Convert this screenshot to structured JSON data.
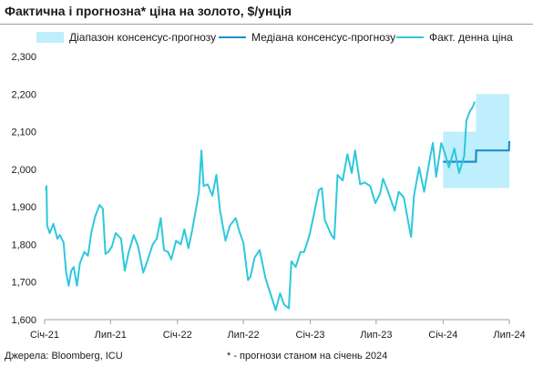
{
  "title": "Фактична і прогнозна* ціна на золото, $/унція",
  "footer": {
    "source": "Джерела: Bloomberg, ICU",
    "note": "* - прогнози станом на січень 2024"
  },
  "colors": {
    "band": "#bfeefc",
    "median": "#1f8fc7",
    "actual": "#2ec8dc",
    "axis": "#9aa0a6",
    "text": "#1a1a1a"
  },
  "chart_data": {
    "type": "line",
    "title": "Фактична і прогнозна* ціна на золото, $/унція",
    "xlabel": "",
    "ylabel": "",
    "ylim": [
      1600,
      2300
    ],
    "yticks": [
      1600,
      1700,
      1800,
      1900,
      2000,
      2100,
      2200,
      2300
    ],
    "ytick_labels": [
      "1,600",
      "1,700",
      "1,800",
      "1,900",
      "2,000",
      "2,100",
      "2,200",
      "2,300"
    ],
    "xlim": [
      "2021-01-01",
      "2024-07-01"
    ],
    "xticks": [
      "2021-01-01",
      "2021-07-01",
      "2022-01-01",
      "2022-07-01",
      "2023-01-01",
      "2023-07-01",
      "2024-01-01",
      "2024-07-01"
    ],
    "xtick_labels": [
      "Січ-21",
      "Лип-21",
      "Січ-22",
      "Лип-22",
      "Січ-23",
      "Лип-23",
      "Січ-24",
      "Лип-24"
    ],
    "grid": false,
    "legend_position": "top",
    "legend": [
      "Діапазон консенсус-прогнозу",
      "Медіана консенсус-прогнозу",
      "Факт. денна ціна"
    ],
    "series": [
      {
        "name": "Діапазон консенсус-прогнозу",
        "kind": "band",
        "points": [
          {
            "x": "2024-01-01",
            "low": 1950,
            "high": 2100
          },
          {
            "x": "2024-03-31",
            "low": 1950,
            "high": 2100
          },
          {
            "x": "2024-04-01",
            "low": 1950,
            "high": 2200
          },
          {
            "x": "2024-07-01",
            "low": 1950,
            "high": 2200
          }
        ]
      },
      {
        "name": "Медіана консенсус-прогнозу",
        "kind": "step",
        "points": [
          {
            "x": "2024-01-01",
            "y": 2020
          },
          {
            "x": "2024-03-31",
            "y": 2020
          },
          {
            "x": "2024-04-01",
            "y": 2050
          },
          {
            "x": "2024-06-30",
            "y": 2050
          },
          {
            "x": "2024-07-01",
            "y": 2075
          }
        ]
      },
      {
        "name": "Факт. денна ціна",
        "kind": "line",
        "points": [
          [
            "2021-01-04",
            1945
          ],
          [
            "2021-01-06",
            1955
          ],
          [
            "2021-01-08",
            1850
          ],
          [
            "2021-01-15",
            1830
          ],
          [
            "2021-01-25",
            1855
          ],
          [
            "2021-02-05",
            1815
          ],
          [
            "2021-02-12",
            1825
          ],
          [
            "2021-02-22",
            1805
          ],
          [
            "2021-03-01",
            1725
          ],
          [
            "2021-03-08",
            1690
          ],
          [
            "2021-03-15",
            1730
          ],
          [
            "2021-03-22",
            1740
          ],
          [
            "2021-03-31",
            1690
          ],
          [
            "2021-04-08",
            1750
          ],
          [
            "2021-04-20",
            1780
          ],
          [
            "2021-04-30",
            1770
          ],
          [
            "2021-05-10",
            1835
          ],
          [
            "2021-05-20",
            1875
          ],
          [
            "2021-06-01",
            1905
          ],
          [
            "2021-06-10",
            1895
          ],
          [
            "2021-06-17",
            1775
          ],
          [
            "2021-06-25",
            1780
          ],
          [
            "2021-07-05",
            1795
          ],
          [
            "2021-07-15",
            1830
          ],
          [
            "2021-07-30",
            1815
          ],
          [
            "2021-08-09",
            1730
          ],
          [
            "2021-08-20",
            1780
          ],
          [
            "2021-09-03",
            1825
          ],
          [
            "2021-09-15",
            1795
          ],
          [
            "2021-09-29",
            1725
          ],
          [
            "2021-10-10",
            1755
          ],
          [
            "2021-10-25",
            1800
          ],
          [
            "2021-11-05",
            1815
          ],
          [
            "2021-11-16",
            1870
          ],
          [
            "2021-11-25",
            1785
          ],
          [
            "2021-12-06",
            1780
          ],
          [
            "2021-12-15",
            1760
          ],
          [
            "2021-12-28",
            1810
          ],
          [
            "2022-01-10",
            1800
          ],
          [
            "2022-01-20",
            1840
          ],
          [
            "2022-01-31",
            1790
          ],
          [
            "2022-02-10",
            1835
          ],
          [
            "2022-02-24",
            1910
          ],
          [
            "2022-03-01",
            1940
          ],
          [
            "2022-03-08",
            2050
          ],
          [
            "2022-03-14",
            1955
          ],
          [
            "2022-03-25",
            1960
          ],
          [
            "2022-04-07",
            1930
          ],
          [
            "2022-04-18",
            1985
          ],
          [
            "2022-04-28",
            1890
          ],
          [
            "2022-05-13",
            1810
          ],
          [
            "2022-05-25",
            1850
          ],
          [
            "2022-06-10",
            1870
          ],
          [
            "2022-06-20",
            1835
          ],
          [
            "2022-07-01",
            1805
          ],
          [
            "2022-07-14",
            1705
          ],
          [
            "2022-07-21",
            1715
          ],
          [
            "2022-08-01",
            1765
          ],
          [
            "2022-08-15",
            1785
          ],
          [
            "2022-08-31",
            1710
          ],
          [
            "2022-09-15",
            1665
          ],
          [
            "2022-09-28",
            1625
          ],
          [
            "2022-10-10",
            1670
          ],
          [
            "2022-10-21",
            1640
          ],
          [
            "2022-11-03",
            1630
          ],
          [
            "2022-11-10",
            1755
          ],
          [
            "2022-11-22",
            1740
          ],
          [
            "2022-12-05",
            1780
          ],
          [
            "2022-12-15",
            1780
          ],
          [
            "2022-12-30",
            1825
          ],
          [
            "2023-01-10",
            1875
          ],
          [
            "2023-01-25",
            1945
          ],
          [
            "2023-02-02",
            1950
          ],
          [
            "2023-02-10",
            1865
          ],
          [
            "2023-02-28",
            1825
          ],
          [
            "2023-03-08",
            1815
          ],
          [
            "2023-03-17",
            1985
          ],
          [
            "2023-03-31",
            1970
          ],
          [
            "2023-04-13",
            2040
          ],
          [
            "2023-04-25",
            1990
          ],
          [
            "2023-05-04",
            2050
          ],
          [
            "2023-05-18",
            1960
          ],
          [
            "2023-05-31",
            1965
          ],
          [
            "2023-06-15",
            1955
          ],
          [
            "2023-06-29",
            1910
          ],
          [
            "2023-07-12",
            1935
          ],
          [
            "2023-07-20",
            1975
          ],
          [
            "2023-08-01",
            1945
          ],
          [
            "2023-08-21",
            1890
          ],
          [
            "2023-09-01",
            1940
          ],
          [
            "2023-09-15",
            1925
          ],
          [
            "2023-09-29",
            1850
          ],
          [
            "2023-10-05",
            1820
          ],
          [
            "2023-10-13",
            1930
          ],
          [
            "2023-10-27",
            2005
          ],
          [
            "2023-11-10",
            1940
          ],
          [
            "2023-11-28",
            2040
          ],
          [
            "2023-12-04",
            2070
          ],
          [
            "2023-12-13",
            1980
          ],
          [
            "2023-12-27",
            2070
          ],
          [
            "2024-01-05",
            2045
          ],
          [
            "2024-01-17",
            2005
          ],
          [
            "2024-02-01",
            2055
          ],
          [
            "2024-02-14",
            1990
          ],
          [
            "2024-02-28",
            2035
          ],
          [
            "2024-03-05",
            2130
          ],
          [
            "2024-03-15",
            2155
          ],
          [
            "2024-03-22",
            2165
          ],
          [
            "2024-03-28",
            2180
          ]
        ]
      }
    ]
  }
}
